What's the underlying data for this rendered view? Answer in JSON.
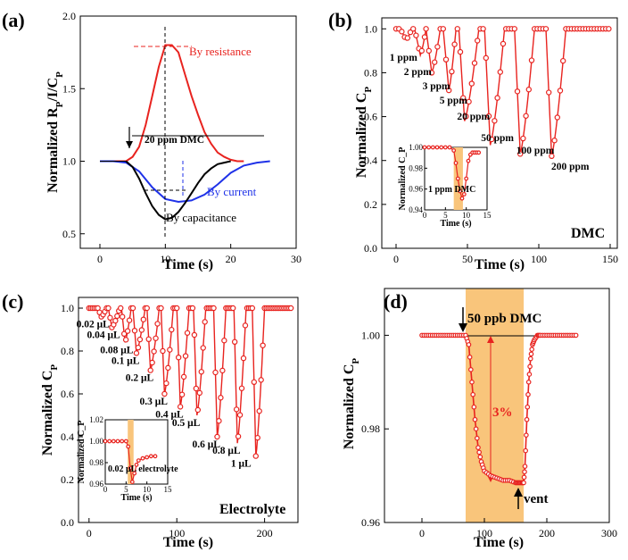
{
  "chart_data": [
    {
      "panel": "(a)",
      "type": "line",
      "xlabel": "Time (s)",
      "ylabel": "Normalized R_P/I/C_P",
      "xlim": [
        -3,
        30
      ],
      "ylim": [
        0.4,
        2.0
      ],
      "xticks": [
        "0",
        "10",
        "20",
        "30"
      ],
      "yticks": [
        "0.5",
        "1.0",
        "1.5",
        "2.0"
      ],
      "annotations": [
        "20 ppm DMC",
        "By resistance",
        "By current",
        "By capacitance"
      ],
      "series": [
        {
          "name": "By resistance",
          "color": "#e8231f",
          "x": [
            0,
            2,
            4,
            5,
            6,
            7,
            8,
            9,
            10,
            11,
            12,
            13,
            14,
            15,
            16,
            17,
            18,
            19,
            20,
            21,
            22
          ],
          "y": [
            1.0,
            1.0,
            1.0,
            1.03,
            1.1,
            1.25,
            1.45,
            1.65,
            1.8,
            1.8,
            1.75,
            1.6,
            1.45,
            1.32,
            1.2,
            1.12,
            1.06,
            1.03,
            1.01,
            1.0,
            1.0
          ]
        },
        {
          "name": "By current",
          "color": "#1f32e8",
          "x": [
            0,
            2,
            4,
            6,
            8,
            10,
            12,
            14,
            16,
            18,
            20,
            22,
            24,
            26
          ],
          "y": [
            1.0,
            1.0,
            0.99,
            0.93,
            0.82,
            0.74,
            0.72,
            0.73,
            0.77,
            0.84,
            0.92,
            0.97,
            0.99,
            1.0
          ]
        },
        {
          "name": "By capacitance",
          "color": "#000000",
          "x": [
            4,
            5,
            6,
            7,
            8,
            9,
            10,
            11,
            12,
            13,
            14,
            15,
            16,
            17,
            18,
            19,
            20
          ],
          "y": [
            1.0,
            0.96,
            0.88,
            0.78,
            0.69,
            0.63,
            0.6,
            0.61,
            0.65,
            0.71,
            0.78,
            0.85,
            0.91,
            0.95,
            0.98,
            0.99,
            1.0
          ]
        }
      ]
    },
    {
      "panel": "(b)",
      "type": "line",
      "xlabel": "Time (s)",
      "ylabel": "Normalized C_P",
      "xlim": [
        -10,
        155
      ],
      "ylim": [
        0.0,
        1.05
      ],
      "xticks": [
        "0",
        "50",
        "100",
        "150"
      ],
      "yticks": [
        "0.0",
        "0.2",
        "0.4",
        "0.6",
        "0.8",
        "1.0"
      ],
      "legend_text": "DMC",
      "concentration_labels": [
        "1 ppm",
        "2 ppm",
        "3 ppm",
        "5 ppm",
        "20 ppm",
        "50 ppm",
        "100 ppm",
        "200 ppm"
      ],
      "pulses": [
        {
          "start": 3,
          "min": 0.95
        },
        {
          "start": 13,
          "min": 0.88
        },
        {
          "start": 21,
          "min": 0.8
        },
        {
          "start": 33,
          "min": 0.72
        },
        {
          "start": 44,
          "min": 0.58
        },
        {
          "start": 62,
          "min": 0.47
        },
        {
          "start": 83,
          "min": 0.43
        },
        {
          "start": 105,
          "min": 0.42
        }
      ],
      "end_time": 150,
      "inset": {
        "xlabel": "Time (s)",
        "ylabel": "Normalized C_P",
        "xlim": [
          0,
          15
        ],
        "ylim": [
          0.94,
          1.0
        ],
        "xticks": [
          "0",
          "5",
          "10",
          "15"
        ],
        "yticks": [
          "0.94",
          "0.96",
          "0.98",
          "1.00"
        ],
        "label": "1 ppm DMC",
        "x": [
          0,
          1,
          2,
          3,
          4,
          5,
          6,
          7,
          7.5,
          8,
          8.5,
          9,
          9.5,
          10,
          10.5,
          11,
          11.5,
          12,
          12.5,
          13
        ],
        "y": [
          1.0,
          1.0,
          1.0,
          1.0,
          1.0,
          1.0,
          1.0,
          0.997,
          0.985,
          0.97,
          0.958,
          0.951,
          0.955,
          0.97,
          0.987,
          0.993,
          0.995,
          0.995,
          0.995,
          0.995
        ]
      }
    },
    {
      "panel": "(c)",
      "type": "line",
      "xlabel": "Time (s)",
      "ylabel": "Normalized C_P",
      "xlim": [
        -12,
        238
      ],
      "ylim": [
        0.0,
        1.05
      ],
      "xticks": [
        "0",
        "100",
        "200"
      ],
      "yticks": [
        "0.0",
        "0.2",
        "0.4",
        "0.6",
        "0.8",
        "1.0"
      ],
      "legend_text": "Electrolyte",
      "volume_labels": [
        "0.02 μL",
        "0.04 μL",
        "0.08 μL",
        "0.1 μL",
        "0.2 μL",
        "0.3 μL",
        "0.4 μL",
        "0.5 μL",
        "0.6 μL",
        "0.8 μL",
        "1 μL"
      ],
      "pulses": [
        {
          "start": 10,
          "min": 0.96
        },
        {
          "start": 22,
          "min": 0.91
        },
        {
          "start": 37,
          "min": 0.84
        },
        {
          "start": 50,
          "min": 0.79
        },
        {
          "start": 66,
          "min": 0.71
        },
        {
          "start": 82,
          "min": 0.6
        },
        {
          "start": 100,
          "min": 0.54
        },
        {
          "start": 119,
          "min": 0.5
        },
        {
          "start": 142,
          "min": 0.4
        },
        {
          "start": 165,
          "min": 0.37
        },
        {
          "start": 186,
          "min": 0.31
        }
      ],
      "end_time": 230,
      "inset": {
        "xlabel": "Time (s)",
        "ylabel": "Normalized C_P",
        "xlim": [
          0,
          15
        ],
        "ylim": [
          0.96,
          1.02
        ],
        "xticks": [
          "0",
          "5",
          "10",
          "15"
        ],
        "yticks": [
          "0.96",
          "0.98",
          "1.00",
          "1.02"
        ],
        "label": "0.02 μL electrolyte",
        "x": [
          0,
          1,
          2,
          3,
          4,
          5,
          5.5,
          6,
          6.5,
          7,
          7.5,
          8,
          9,
          10,
          11,
          12
        ],
        "y": [
          1.0,
          1.0,
          1.0,
          1.0,
          1.0,
          1.0,
          0.995,
          0.975,
          0.962,
          0.97,
          0.978,
          0.982,
          0.984,
          0.985,
          0.986,
          0.986
        ]
      }
    },
    {
      "panel": "(d)",
      "type": "line",
      "xlabel": "Time (s)",
      "ylabel": "Normalized C_P",
      "xlim": [
        -60,
        300
      ],
      "ylim": [
        0.96,
        1.01
      ],
      "xticks": [
        "0",
        "100",
        "200",
        "300"
      ],
      "yticks": [
        "0.96",
        "0.98",
        "1.00"
      ],
      "annotations": [
        "50 ppb DMC",
        "3%",
        "vent"
      ],
      "highlight": [
        70,
        163
      ],
      "x": [
        0,
        10,
        20,
        30,
        40,
        50,
        60,
        70,
        75,
        80,
        85,
        90,
        95,
        100,
        110,
        120,
        130,
        140,
        150,
        155,
        160,
        163,
        165,
        168,
        171,
        174,
        177,
        180,
        185,
        190,
        200,
        210,
        220,
        230,
        240,
        250
      ],
      "y": [
        1.0,
        1.0,
        1.0,
        1.0,
        1.0,
        1.0,
        1.0,
        1.0,
        0.998,
        0.99,
        0.982,
        0.976,
        0.973,
        0.971,
        0.97,
        0.9695,
        0.969,
        0.969,
        0.9685,
        0.9685,
        0.9685,
        0.9685,
        0.972,
        0.982,
        0.99,
        0.995,
        0.998,
        0.999,
        1.0,
        1.0,
        1.0,
        1.0,
        1.0,
        1.0,
        1.0,
        1.0
      ]
    }
  ]
}
